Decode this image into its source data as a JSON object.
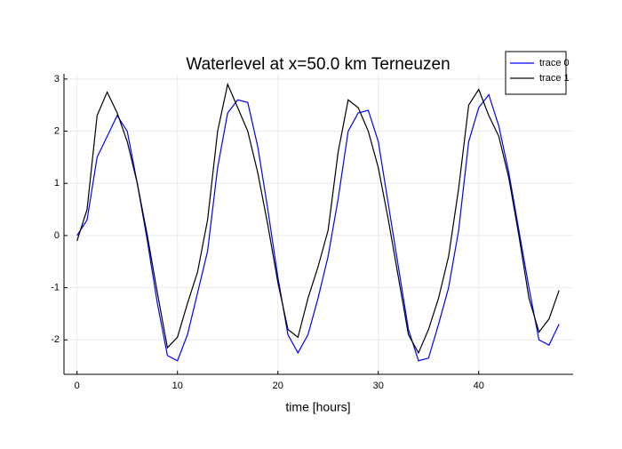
{
  "chart_data": {
    "type": "line",
    "title": "Waterlevel at x=50.0 km Terneuzen",
    "x_label": "time [hours]",
    "x": [
      0,
      1,
      2,
      3,
      4,
      5,
      6,
      7,
      8,
      9,
      10,
      11,
      12,
      13,
      14,
      15,
      16,
      17,
      18,
      19,
      20,
      21,
      22,
      23,
      24,
      25,
      26,
      27,
      28,
      29,
      30,
      31,
      32,
      33,
      34,
      35,
      36,
      37,
      38,
      39,
      40,
      41,
      42,
      43,
      44,
      45,
      46,
      47,
      48
    ],
    "series": [
      {
        "name": "trace 0",
        "color": "#0000ff",
        "values": [
          0.0,
          0.3,
          1.5,
          1.9,
          2.3,
          2.0,
          1.0,
          -0.1,
          -1.3,
          -2.3,
          -2.4,
          -1.9,
          -1.1,
          -0.3,
          1.3,
          2.35,
          2.6,
          2.55,
          1.7,
          0.5,
          -0.8,
          -1.9,
          -2.25,
          -1.9,
          -1.2,
          -0.4,
          0.7,
          2.0,
          2.35,
          2.4,
          1.8,
          0.6,
          -0.6,
          -1.8,
          -2.4,
          -2.35,
          -1.7,
          -1.0,
          0.1,
          1.8,
          2.45,
          2.7,
          2.1,
          1.2,
          0.1,
          -1.0,
          -2.0,
          -2.1,
          -1.7
        ]
      },
      {
        "name": "trace 1",
        "color": "#000000",
        "values": [
          -0.1,
          0.5,
          2.3,
          2.75,
          2.35,
          1.8,
          1.0,
          0.0,
          -1.1,
          -2.15,
          -1.95,
          -1.3,
          -0.7,
          0.3,
          2.0,
          2.9,
          2.45,
          2.0,
          1.2,
          0.2,
          -0.9,
          -1.8,
          -1.95,
          -1.2,
          -0.6,
          0.1,
          1.6,
          2.6,
          2.45,
          2.0,
          1.3,
          0.3,
          -0.8,
          -1.9,
          -2.25,
          -1.8,
          -1.2,
          -0.4,
          0.9,
          2.5,
          2.8,
          2.3,
          1.9,
          1.1,
          0.0,
          -1.2,
          -1.85,
          -1.6,
          -1.05
        ]
      }
    ],
    "xlim": [
      -1.3,
      49.4
    ],
    "ylim": [
      -2.66,
      3.1
    ],
    "xticks": [
      0,
      10,
      20,
      30,
      40
    ],
    "yticks": [
      -2,
      -1,
      0,
      1,
      2,
      3
    ],
    "grid": true,
    "legend": "top-right"
  }
}
